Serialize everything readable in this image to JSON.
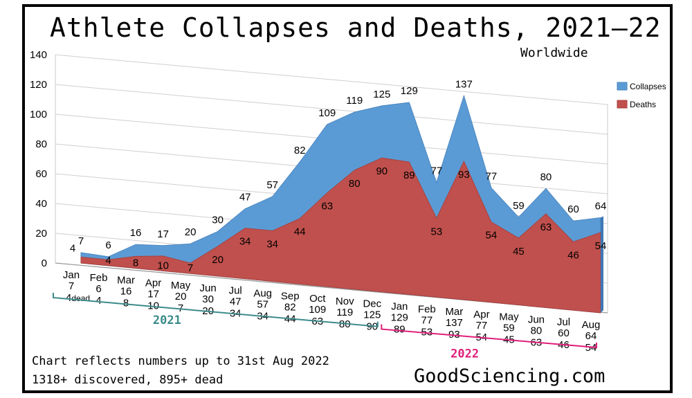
{
  "header": {
    "title": "Athlete Collapses and Deaths, 2021—22",
    "subtitle": "Worldwide"
  },
  "notes": {
    "line1": "Chart reflects numbers up to 31st Aug 2022",
    "line2": "1318+ discovered, 895+ dead"
  },
  "site": "GoodSciencing.com",
  "colors": {
    "collapses": "#5b9bd5",
    "deaths": "#c0504d",
    "year2021": "#3b8a8a",
    "year2022": "#e01e7a"
  },
  "chart_data": {
    "type": "area",
    "title": "Athlete Collapses and Deaths, 2021—22",
    "subtitle": "Worldwide",
    "categories": [
      "Jan",
      "Feb",
      "Mar",
      "Apr",
      "May",
      "Jun",
      "Jul",
      "Aug",
      "Sep",
      "Oct",
      "Nov",
      "Dec",
      "Jan",
      "Feb",
      "Mar",
      "Apr",
      "May",
      "Jun",
      "Jul",
      "Aug"
    ],
    "years": [
      {
        "label": "2021",
        "start": 0,
        "end": 11
      },
      {
        "label": "2022",
        "start": 12,
        "end": 19
      }
    ],
    "series": [
      {
        "name": "Collapses",
        "values": [
          7,
          6,
          16,
          17,
          20,
          30,
          47,
          57,
          82,
          109,
          119,
          125,
          129,
          77,
          137,
          77,
          59,
          80,
          60,
          64
        ]
      },
      {
        "name": "Deaths",
        "values": [
          4,
          4,
          8,
          10,
          7,
          20,
          34,
          34,
          44,
          63,
          80,
          90,
          89,
          53,
          93,
          54,
          45,
          63,
          46,
          54
        ]
      }
    ],
    "first_death_suffix": "dead",
    "yticks": [
      0,
      20,
      40,
      60,
      80,
      100,
      120,
      140
    ],
    "ylim": [
      0,
      140
    ],
    "legend": "right",
    "grid": true
  }
}
